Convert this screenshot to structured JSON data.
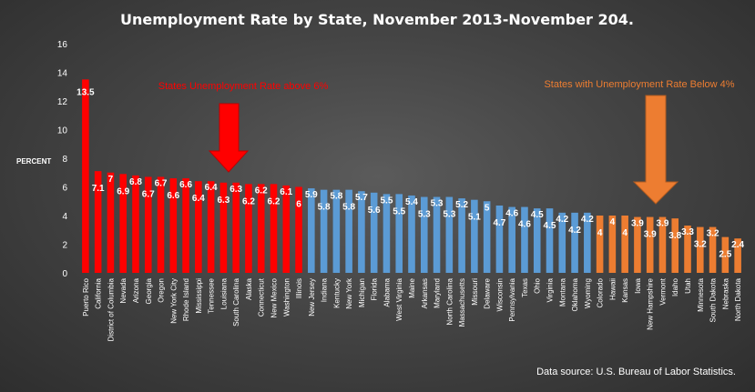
{
  "chart_data": {
    "type": "bar",
    "title": "Unemployment Rate by State, November 2013-November 204.",
    "ylabel": "PERCENT",
    "xlabel": "",
    "ylim": [
      0,
      16
    ],
    "yticks": [
      0,
      2,
      4,
      6,
      8,
      10,
      12,
      14,
      16
    ],
    "grid": false,
    "categories": [
      "Puerto Rico",
      "California",
      "District of Columbia",
      "Nevada",
      "Arizona",
      "Georgia",
      "Oregon",
      "New York City",
      "Rhode Island",
      "Mississippi",
      "Tennessee",
      "Louisiana",
      "South Carolina",
      "Alaska",
      "Connecticut",
      "New Mexico",
      "Washington",
      "Illinois",
      "New Jersey",
      "Indiana",
      "Kentucky",
      "New York",
      "Michigan",
      "Florida",
      "Alabama",
      "West Virginia",
      "Maine",
      "Arkansas",
      "Maryland",
      "North Carolina",
      "Massachusetts",
      "Missouri",
      "Delaware",
      "Wisconsin",
      "Pennsylvania",
      "Texas",
      "Ohio",
      "Virginia",
      "Montana",
      "Oklahoma",
      "Wyoming",
      "Colorado",
      "Hawaii",
      "Kansas",
      "Iowa",
      "New Hampshire",
      "Vermont",
      "Idaho",
      "Utah",
      "Minnesota",
      "South Dakota",
      "Nebraska",
      "North Dakota"
    ],
    "values": [
      13.5,
      7.1,
      7,
      6.9,
      6.8,
      6.7,
      6.7,
      6.6,
      6.6,
      6.4,
      6.4,
      6.3,
      6.3,
      6.2,
      6.2,
      6.2,
      6.1,
      6,
      5.9,
      5.8,
      5.8,
      5.8,
      5.7,
      5.6,
      5.5,
      5.5,
      5.4,
      5.3,
      5.3,
      5.3,
      5.2,
      5.1,
      5,
      4.7,
      4.6,
      4.6,
      4.5,
      4.5,
      4.2,
      4.2,
      4.2,
      4,
      4,
      4,
      3.9,
      3.9,
      3.9,
      3.8,
      3.3,
      3.2,
      3.2,
      2.5,
      2.4
    ],
    "groups": [
      {
        "name": "above6",
        "start": 0,
        "end": 17,
        "color": "#ff0000"
      },
      {
        "name": "middle",
        "start": 18,
        "end": 40,
        "color": "#5b9bd5"
      },
      {
        "name": "below4",
        "start": 41,
        "end": 52,
        "color": "#ed7d31"
      }
    ],
    "annotations": [
      {
        "text": "States Unemployment Rate above 6%",
        "color": "#ff0000"
      },
      {
        "text": "States with Unemployment Rate Below 4%",
        "color": "#ed7d31"
      }
    ],
    "source": "Data source: U.S. Bureau of Labor Statistics."
  }
}
